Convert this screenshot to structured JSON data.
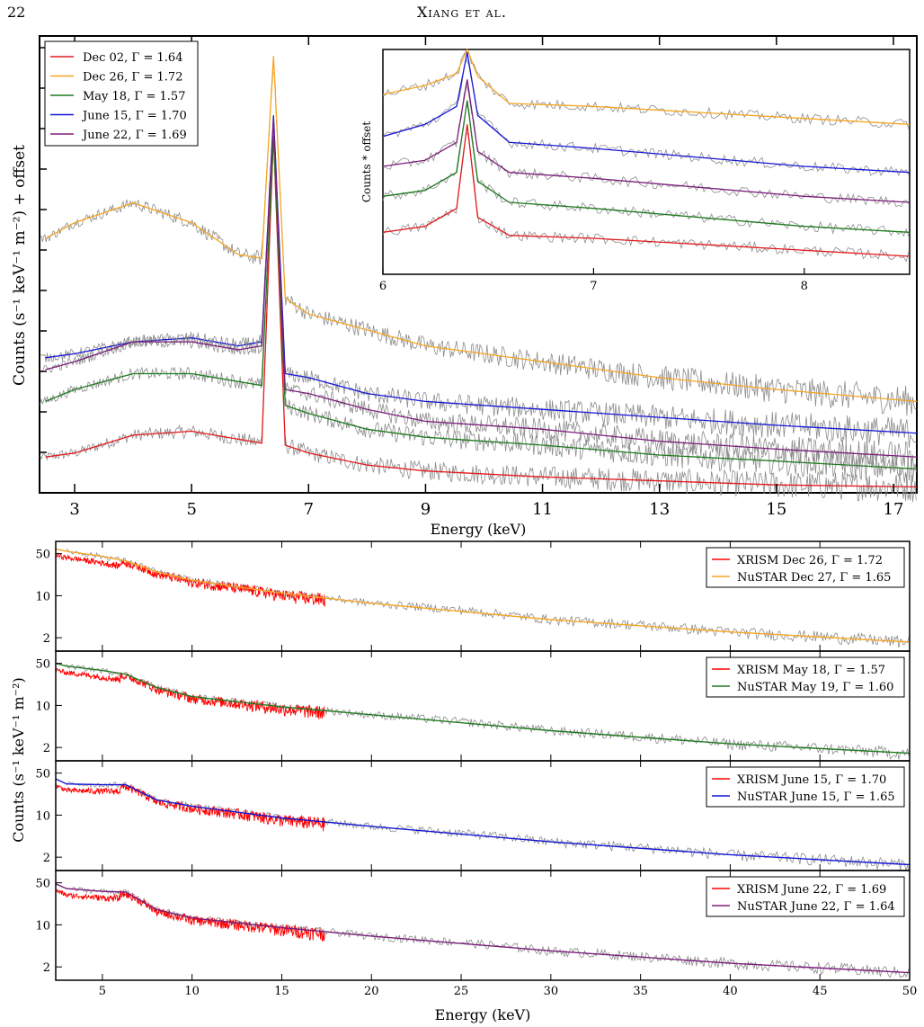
{
  "header": {
    "page_number": "22",
    "running_head": "Xiang et al."
  },
  "colors": {
    "data": "#8c8c8c",
    "red": "#e31a1c",
    "orange": "#f5a623",
    "green": "#1f7a1f",
    "blue": "#1515d6",
    "purple": "#7b1e7b",
    "xrism_data": "#ff0000"
  },
  "chart_data": [
    {
      "type": "line",
      "panel": "main",
      "xlabel": "Energy (keV)",
      "ylabel": "Counts (s⁻¹ keV⁻¹ m⁻²) + offset",
      "xlim": [
        2.4,
        17.4
      ],
      "xticks": [
        3,
        5,
        7,
        9,
        11,
        13,
        15,
        17
      ],
      "y_tick_labels": false,
      "legend": {
        "placement": "top-left"
      },
      "series": [
        {
          "name": "Dec 02, Γ = 1.64",
          "color": "#e31a1c",
          "x": [
            2.5,
            3,
            4,
            5,
            5.8,
            6.2,
            6.4,
            6.6,
            7,
            8,
            9,
            11,
            13,
            15,
            17.4
          ],
          "y": [
            0.9,
            1.0,
            1.45,
            1.55,
            1.35,
            1.25,
            9.0,
            1.2,
            1.0,
            0.7,
            0.55,
            0.4,
            0.3,
            0.2,
            0.15
          ]
        },
        {
          "name": "Dec 26, Γ = 1.72",
          "color": "#f5a623",
          "x": [
            2.5,
            3,
            4,
            5,
            5.8,
            6.2,
            6.4,
            6.6,
            7,
            8,
            9,
            11,
            13,
            15,
            17.4
          ],
          "y": [
            6.4,
            6.8,
            7.3,
            6.8,
            6.0,
            5.9,
            11.0,
            4.9,
            4.5,
            4.1,
            3.7,
            3.3,
            2.9,
            2.6,
            2.3
          ]
        },
        {
          "name": "May 18, Γ = 1.57",
          "color": "#1f7a1f",
          "x": [
            2.5,
            3,
            4,
            5,
            5.8,
            6.2,
            6.4,
            6.6,
            7,
            8,
            9,
            11,
            13,
            15,
            17.4
          ],
          "y": [
            2.3,
            2.6,
            3.0,
            3.0,
            2.8,
            2.7,
            9.0,
            2.2,
            2.0,
            1.6,
            1.4,
            1.2,
            0.95,
            0.8,
            0.6
          ]
        },
        {
          "name": "June 15, Γ = 1.70",
          "color": "#1515d6",
          "x": [
            2.5,
            3,
            4,
            5,
            5.8,
            6.2,
            6.4,
            6.6,
            7,
            8,
            9,
            11,
            13,
            15,
            17.4
          ],
          "y": [
            3.4,
            3.5,
            3.8,
            3.9,
            3.7,
            3.8,
            9.5,
            3.0,
            2.9,
            2.5,
            2.3,
            2.1,
            1.9,
            1.7,
            1.5
          ]
        },
        {
          "name": "June 22, Γ = 1.69",
          "color": "#7b1e7b",
          "x": [
            2.5,
            3,
            4,
            5,
            5.8,
            6.2,
            6.4,
            6.6,
            7,
            8,
            9,
            11,
            13,
            15,
            17.4
          ],
          "y": [
            3.1,
            3.3,
            3.8,
            3.8,
            3.6,
            3.7,
            9.4,
            2.6,
            2.5,
            2.1,
            1.8,
            1.6,
            1.3,
            1.1,
            0.9
          ]
        }
      ]
    },
    {
      "type": "line",
      "panel": "inset",
      "ylabel": "Counts * offset",
      "xlim": [
        6.0,
        8.5
      ],
      "xticks": [
        6,
        7,
        8
      ],
      "series": [
        {
          "color": "#f5a623",
          "x": [
            6.0,
            6.2,
            6.35,
            6.4,
            6.45,
            6.6,
            7.0,
            7.5,
            8.0,
            8.5
          ],
          "y": [
            9.0,
            9.3,
            9.7,
            10.5,
            9.6,
            8.7,
            8.6,
            8.4,
            8.2,
            8.0
          ]
        },
        {
          "color": "#1515d6",
          "x": [
            6.0,
            6.2,
            6.35,
            6.4,
            6.45,
            6.6,
            7.0,
            7.5,
            8.0,
            8.5
          ],
          "y": [
            7.6,
            8.0,
            8.6,
            10.4,
            8.3,
            7.4,
            7.2,
            6.9,
            6.6,
            6.4
          ]
        },
        {
          "color": "#7b1e7b",
          "x": [
            6.0,
            6.2,
            6.35,
            6.4,
            6.45,
            6.6,
            7.0,
            7.5,
            8.0,
            8.5
          ],
          "y": [
            6.6,
            6.8,
            7.4,
            9.5,
            7.1,
            6.4,
            6.2,
            5.9,
            5.6,
            5.4
          ]
        },
        {
          "color": "#1f7a1f",
          "x": [
            6.0,
            6.2,
            6.35,
            6.4,
            6.45,
            6.6,
            7.0,
            7.5,
            8.0,
            8.5
          ],
          "y": [
            5.6,
            5.8,
            6.4,
            8.8,
            6.1,
            5.4,
            5.2,
            4.9,
            4.6,
            4.4
          ]
        },
        {
          "color": "#e31a1c",
          "x": [
            6.0,
            6.2,
            6.35,
            6.4,
            6.45,
            6.6,
            7.0,
            7.5,
            8.0,
            8.5
          ],
          "y": [
            4.4,
            4.6,
            5.2,
            8.0,
            4.9,
            4.3,
            4.2,
            4.0,
            3.8,
            3.6
          ]
        }
      ]
    },
    {
      "type": "line",
      "panel": "broadband",
      "xlabel": "Energy (keV)",
      "ylabel": "Counts (s⁻¹ keV⁻¹ m⁻²)",
      "xlim": [
        2.4,
        50
      ],
      "xticks": [
        5,
        10,
        15,
        20,
        25,
        30,
        35,
        40,
        45,
        50
      ],
      "y_scale": "log",
      "ylim": [
        1.2,
        80
      ],
      "yticks": [
        2,
        10,
        50
      ],
      "subpanels": [
        {
          "legend": [
            "XRISM Dec 26, Γ = 1.72",
            "NuSTAR Dec 27, Γ = 1.65"
          ],
          "model_color": "#f5a623",
          "model": {
            "x": [
              2.4,
              3,
              5,
              6.3,
              8,
              10,
              15,
              20,
              30,
              40,
              50
            ],
            "y": [
              60,
              55,
              45,
              38,
              25,
              18,
              11,
              7.5,
              4,
              2.5,
              1.7
            ]
          }
        },
        {
          "legend": [
            "XRISM May 18, Γ = 1.57",
            "NuSTAR May 19, Γ = 1.60"
          ],
          "model_color": "#1f7a1f",
          "model": {
            "x": [
              2.4,
              3,
              5,
              6.3,
              8,
              10,
              15,
              20,
              30,
              40,
              50
            ],
            "y": [
              50,
              45,
              38,
              33,
              20,
              14,
              9.5,
              7,
              3.8,
              2.3,
              1.6
            ]
          }
        },
        {
          "legend": [
            "XRISM June 15, Γ = 1.70",
            "NuSTAR June 15, Γ = 1.65"
          ],
          "model_color": "#1515d6",
          "model": {
            "x": [
              2.4,
              3,
              5,
              6.3,
              8,
              10,
              15,
              20,
              30,
              40,
              50
            ],
            "y": [
              40,
              33,
              32,
              32,
              18,
              14,
              9,
              6.5,
              3.6,
              2.2,
              1.5
            ]
          }
        },
        {
          "legend": [
            "XRISM June 22, Γ = 1.69",
            "NuSTAR June 22, Γ = 1.64"
          ],
          "model_color": "#7b1e7b",
          "model": {
            "x": [
              2.4,
              3,
              5,
              6.3,
              8,
              10,
              15,
              20,
              30,
              40,
              50
            ],
            "y": [
              48,
              40,
              36,
              35,
              18,
              13,
              9,
              6.5,
              3.7,
              2.3,
              1.6
            ]
          }
        }
      ]
    }
  ]
}
